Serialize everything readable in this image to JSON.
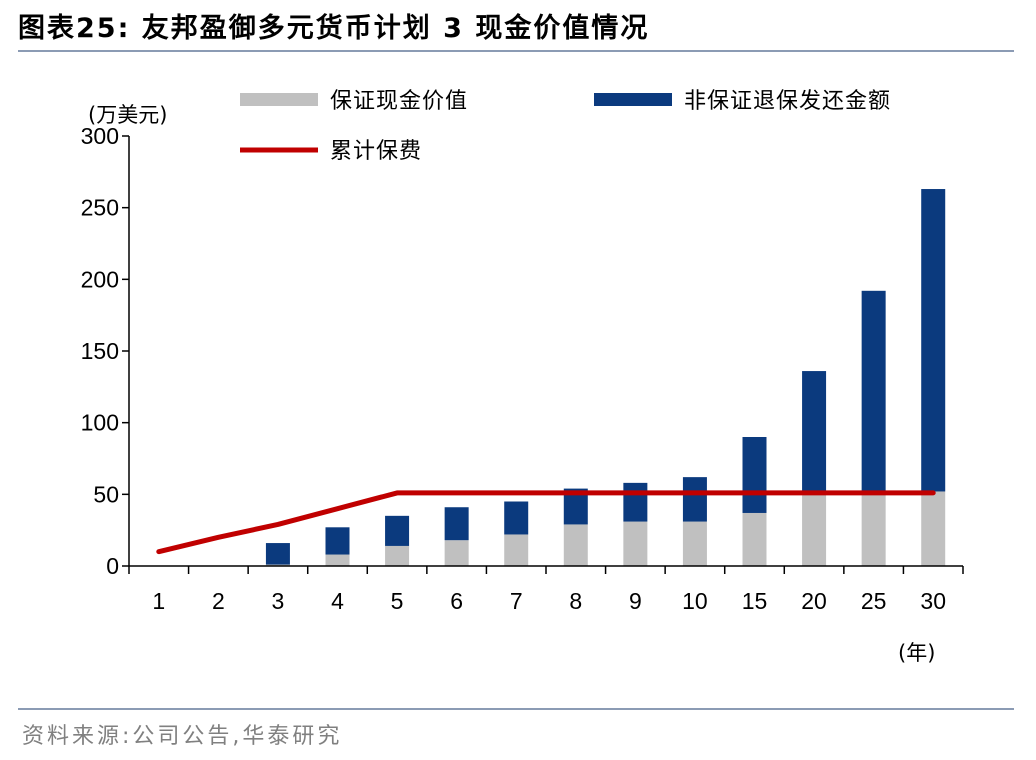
{
  "title": "图表25:  友邦盈御多元货币计划 3 现金价值情况",
  "source": "资料来源:公司公告,华泰研究",
  "colors": {
    "guaranteed": "#c0c0c0",
    "non_guaranteed": "#0b3a7e",
    "premium_line": "#c00000",
    "axis": "#000000"
  },
  "chart_data": {
    "type": "bar",
    "stacked": true,
    "categories": [
      "1",
      "2",
      "3",
      "4",
      "5",
      "6",
      "7",
      "8",
      "9",
      "10",
      "15",
      "20",
      "25",
      "30"
    ],
    "ylabel": "(万美元)",
    "xlabel": "(年)",
    "ylim": [
      0,
      300
    ],
    "yticks": [
      0,
      50,
      100,
      150,
      200,
      250,
      300
    ],
    "grid": false,
    "legend_position": "top",
    "series": [
      {
        "name": "保证现金价值",
        "kind": "bar",
        "color": "#c0c0c0",
        "values": [
          0,
          0,
          1,
          8,
          14,
          18,
          22,
          29,
          31,
          31,
          37,
          50,
          50,
          52
        ]
      },
      {
        "name": "非保证退保发还金额",
        "kind": "bar",
        "color": "#0b3a7e",
        "values": [
          0,
          0,
          15,
          19,
          21,
          23,
          23,
          25,
          27,
          31,
          53,
          86,
          142,
          211
        ]
      },
      {
        "name": "累计保费",
        "kind": "line",
        "color": "#c00000",
        "values": [
          10,
          20,
          29,
          40,
          51,
          51,
          51,
          51,
          51,
          51,
          51,
          51,
          51,
          51
        ]
      }
    ]
  }
}
